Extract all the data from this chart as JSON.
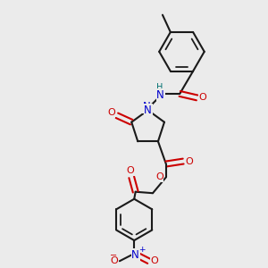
{
  "background_color": "#ebebeb",
  "bond_color": "#1a1a1a",
  "oxygen_color": "#cc0000",
  "nitrogen_color": "#0000cc",
  "hydrogen_color": "#007070",
  "carbon_color": "#1a1a1a",
  "line_width": 1.5,
  "figsize": [
    3.0,
    3.0
  ],
  "dpi": 100,
  "xlim": [
    0,
    10
  ],
  "ylim": [
    0,
    10
  ]
}
